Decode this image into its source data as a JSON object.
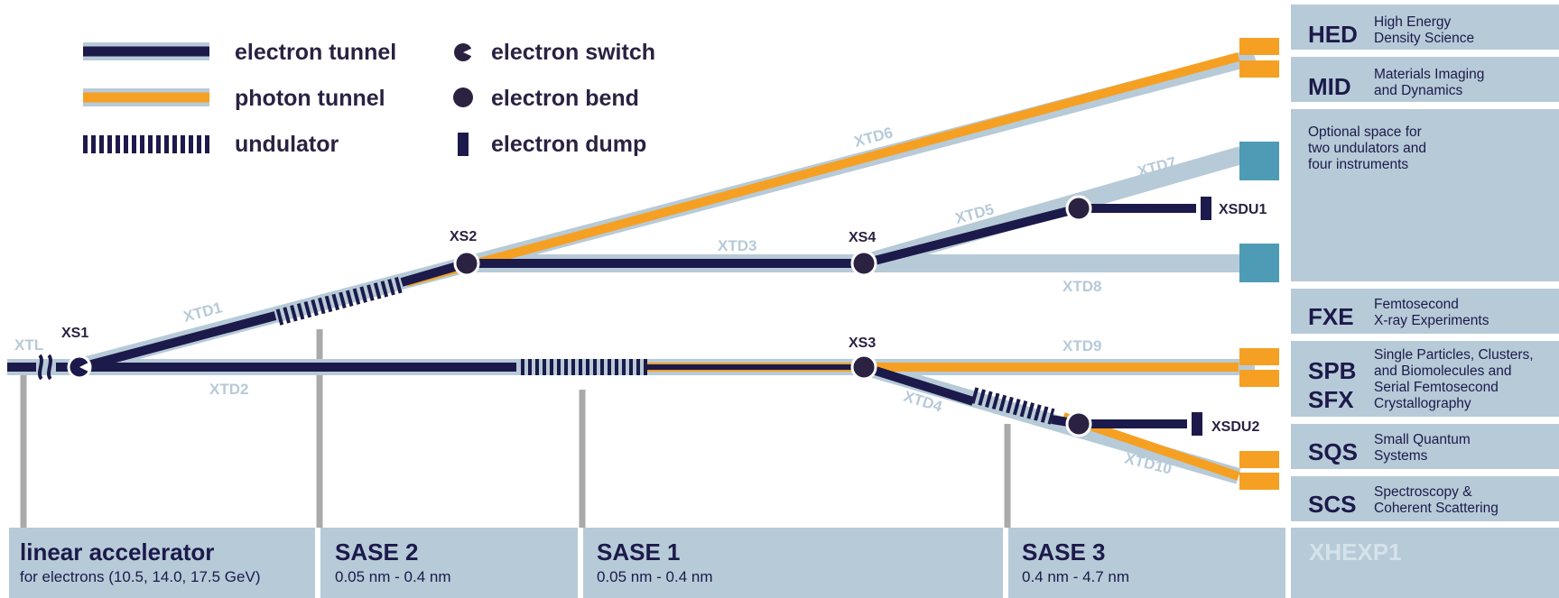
{
  "legend": {
    "electron_tunnel": "electron tunnel",
    "photon_tunnel": "photon tunnel",
    "undulator": "undulator",
    "electron_switch": "electron switch",
    "electron_bend": "electron bend",
    "electron_dump": "electron dump"
  },
  "switches": {
    "xs1": "XS1",
    "xs2": "XS2",
    "xs3": "XS3",
    "xs4": "XS4"
  },
  "dumps": {
    "xsdu1": "XSDU1",
    "xsdu2": "XSDU2"
  },
  "tunnels": {
    "xtl": "XTL",
    "xtd1": "XTD1",
    "xtd2": "XTD2",
    "xtd3": "XTD3",
    "xtd4": "XTD4",
    "xtd5": "XTD5",
    "xtd6": "XTD6",
    "xtd7": "XTD7",
    "xtd8": "XTD8",
    "xtd9": "XTD9",
    "xtd10": "XTD10"
  },
  "sections": {
    "linac": {
      "title": "linear accelerator",
      "subtitle": "for electrons (10.5, 14.0, 17.5 GeV)"
    },
    "sase2": {
      "title": "SASE 2",
      "subtitle": "0.05 nm - 0.4 nm"
    },
    "sase1": {
      "title": "SASE 1",
      "subtitle": "0.05 nm - 0.4 nm"
    },
    "sase3": {
      "title": "SASE 3",
      "subtitle": "0.4 nm - 4.7 nm"
    },
    "hall": {
      "title": "XHEXP1"
    }
  },
  "instruments": {
    "hed": {
      "code": "HED",
      "line1": "High Energy",
      "line2": "Density Science"
    },
    "mid": {
      "code": "MID",
      "line1": "Materials Imaging",
      "line2": "and Dynamics"
    },
    "optional": {
      "line1": "Optional space for",
      "line2": "two undulators and",
      "line3": "four instruments"
    },
    "fxe": {
      "code": "FXE",
      "line1": "Femtosecond",
      "line2": "X-ray Experiments"
    },
    "spb": {
      "code1": "SPB",
      "code2": "SFX",
      "line1": "Single Particles, Clusters,",
      "line2": "and Biomolecules and",
      "line3": "Serial Femtosecond",
      "line4": "Crystallography"
    },
    "sqs": {
      "code": "SQS",
      "line1": "Small Quantum",
      "line2": "Systems"
    },
    "scs": {
      "code": "SCS",
      "line1": "Spectroscopy &",
      "line2": "Coherent Scattering"
    }
  },
  "colors": {
    "electron": "#1c1a4a",
    "photon": "#f5a023",
    "tunnel": "#b7cad8",
    "panel": "#b7cad8",
    "teal": "#4e9bb5",
    "gray_post": "#aaaaaa"
  }
}
